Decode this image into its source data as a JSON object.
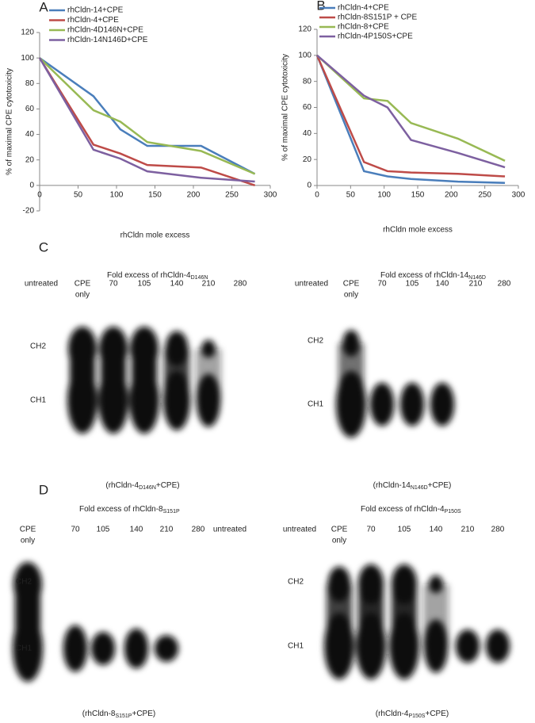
{
  "chart_data": [
    {
      "type": "line",
      "panel": "A",
      "x_label": "rhCldn mole excess",
      "y_label": "% of maximal CPE cytotoxicity",
      "x": [
        0,
        70,
        105,
        140,
        210,
        280
      ],
      "xlim": [
        0,
        300
      ],
      "xticks": [
        0,
        50,
        100,
        150,
        200,
        250,
        300
      ],
      "ylim": [
        -20,
        120
      ],
      "yticks": [
        -20,
        0,
        20,
        40,
        60,
        80,
        100,
        120
      ],
      "grid": false,
      "series": [
        {
          "name": "rhCldn-14+CPE",
          "color": "#4a7ebb",
          "values": [
            100,
            70,
            44,
            31,
            31,
            9
          ]
        },
        {
          "name": "rhCldn-4+CPE",
          "color": "#be4b48",
          "values": [
            100,
            32,
            25,
            16,
            14,
            0
          ]
        },
        {
          "name": "rhCldn-4D146N+CPE",
          "color": "#98b954",
          "values": [
            100,
            59,
            50,
            34,
            27,
            9
          ]
        },
        {
          "name": "rhCldn-14N146D+CPE",
          "color": "#7d60a0",
          "values": [
            100,
            28,
            21,
            11,
            6,
            3
          ]
        }
      ]
    },
    {
      "type": "line",
      "panel": "B",
      "x_label": "rhCldn mole excess",
      "y_label": "% of maximal CPE cytotoxicity",
      "x": [
        0,
        70,
        105,
        140,
        210,
        280
      ],
      "xlim": [
        0,
        300
      ],
      "xticks": [
        0,
        50,
        100,
        150,
        200,
        250,
        300
      ],
      "ylim": [
        0,
        120
      ],
      "yticks": [
        0,
        20,
        40,
        60,
        80,
        100,
        120
      ],
      "grid": false,
      "series": [
        {
          "name": "rhCldn-4+CPE",
          "color": "#4a7ebb",
          "values": [
            100,
            11,
            7,
            5,
            3,
            2
          ]
        },
        {
          "name": "rhCldn-8S151P + CPE",
          "color": "#be4b48",
          "values": [
            100,
            18,
            11,
            10,
            9,
            7
          ]
        },
        {
          "name": "rhCldn-8+CPE",
          "color": "#98b954",
          "values": [
            100,
            67,
            65,
            48,
            36,
            19
          ]
        },
        {
          "name": "rhCldn-4P150S+CPE",
          "color": "#7d60a0",
          "values": [
            100,
            69,
            60,
            35,
            25,
            14
          ]
        }
      ]
    }
  ],
  "gels": [
    {
      "panel": "C",
      "heading": "Fold excess of rhCldn-4",
      "heading_sub": "D146N",
      "lanes": [
        [
          "untreated"
        ],
        [
          "CPE",
          "only"
        ],
        [
          "70"
        ],
        [
          "105"
        ],
        [
          "140"
        ],
        [
          "210"
        ],
        [
          "280"
        ]
      ],
      "bands": [
        "CH2",
        "CH1"
      ],
      "caption": [
        "(rhCldn-4",
        "D146N",
        "+CPE)"
      ]
    },
    {
      "heading": "Fold excess of rhCldn-14",
      "heading_sub": "N146D",
      "lanes": [
        [
          "untreated"
        ],
        [
          "CPE",
          "only"
        ],
        [
          "70"
        ],
        [
          "105"
        ],
        [
          "140"
        ],
        [
          "210"
        ],
        [
          "280"
        ]
      ],
      "bands": [
        "CH2",
        "CH1"
      ],
      "caption": [
        "(rhCldn-14",
        "N146D",
        "+CPE)"
      ]
    },
    {
      "panel": "D",
      "heading": "Fold excess of rhCldn-8",
      "heading_sub": "S151P",
      "lanes": [
        [
          "CPE",
          "only"
        ],
        [
          "70"
        ],
        [
          "105"
        ],
        [
          "140"
        ],
        [
          "210"
        ],
        [
          "280"
        ],
        [
          "untreated"
        ]
      ],
      "bands": [
        "CH2",
        "CH1"
      ],
      "caption": [
        "(rhCldn-8",
        "S151P",
        "+CPE)"
      ]
    },
    {
      "heading": "Fold excess of rhCldn-4",
      "heading_sub": "P150S",
      "lanes": [
        [
          "untreated"
        ],
        [
          "CPE",
          "only"
        ],
        [
          "70"
        ],
        [
          "105"
        ],
        [
          "140"
        ],
        [
          "210"
        ],
        [
          "280"
        ]
      ],
      "bands": [
        "CH2",
        "CH1"
      ],
      "caption": [
        "(rhCldn-4",
        "P150S",
        "+CPE)"
      ]
    }
  ]
}
